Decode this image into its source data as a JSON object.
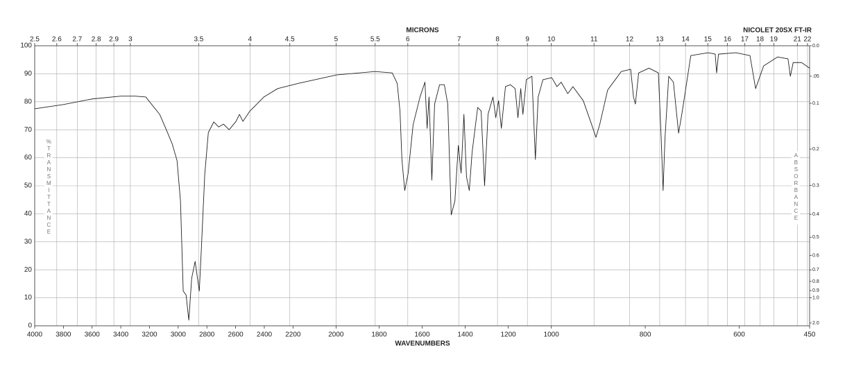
{
  "chart_data": {
    "type": "line",
    "title": "NICOLET 20SX FT-IR",
    "x_label": "WAVENUMBERS",
    "x2_label": "MICRONS",
    "y_label": "%TRANSMITTANCE",
    "y2_label": "ABSORBANCE",
    "color": "#222222",
    "grid": true,
    "xlim": [
      4000,
      450
    ],
    "xticks": [
      4000,
      3800,
      3600,
      3400,
      3200,
      3000,
      2800,
      2600,
      2400,
      2200,
      2000,
      1800,
      1600,
      1400,
      1200,
      1000,
      800,
      600,
      450
    ],
    "x2ticks": [
      2.5,
      2.6,
      2.7,
      2.8,
      2.9,
      3,
      3.5,
      4,
      4.5,
      5,
      5.5,
      6,
      7,
      8,
      9,
      10,
      11,
      12,
      13,
      14,
      15,
      16,
      17,
      18,
      19,
      21,
      22
    ],
    "ylim": [
      0,
      100
    ],
    "yticks": [
      0,
      10,
      20,
      30,
      40,
      50,
      60,
      70,
      80,
      90,
      100
    ],
    "y2ticks": [
      {
        "value": 0,
        "label": "0.0"
      },
      {
        "value": 0.05,
        "label": ".05"
      },
      0.1,
      0.2,
      0.3,
      0.4,
      0.5,
      0.6,
      0.7,
      0.8,
      0.9,
      {
        "value": 1,
        "label": "1.0"
      },
      {
        "value": 2,
        "label": "2.0"
      }
    ],
    "x": [
      4000,
      3800,
      3600,
      3400,
      3300,
      3226,
      3129,
      3081,
      3042,
      3008,
      2984,
      2965,
      2945,
      2926,
      2906,
      2882,
      2853,
      2839,
      2815,
      2790,
      2752,
      2718,
      2684,
      2645,
      2597,
      2573,
      2549,
      2500,
      2403,
      2307,
      2174,
      1997,
      1819,
      1739,
      1716,
      1703,
      1694,
      1681,
      1665,
      1642,
      1610,
      1587,
      1577,
      1568,
      1555,
      1542,
      1519,
      1497,
      1481,
      1465,
      1448,
      1432,
      1419,
      1406,
      1394,
      1381,
      1368,
      1342,
      1326,
      1310,
      1294,
      1271,
      1258,
      1245,
      1232,
      1213,
      1190,
      1168,
      1155,
      1142,
      1132,
      1116,
      1090,
      1074,
      1061,
      1039,
      999,
      988,
      979,
      965,
      954,
      932,
      914,
      905,
      897,
      880,
      851,
      831,
      825,
      821,
      814,
      792,
      772,
      766,
      762,
      758,
      750,
      740,
      729,
      721,
      703,
      666,
      651,
      648,
      644,
      607,
      577,
      565,
      548,
      518,
      496,
      491,
      485,
      467,
      450
    ],
    "values": [
      77.5,
      79,
      81,
      82,
      82,
      81.7,
      75.5,
      69.8,
      65,
      59,
      44.5,
      12.4,
      11,
      2,
      17,
      23,
      12.4,
      27,
      54,
      69,
      72.8,
      71,
      72,
      70,
      73,
      75.5,
      73,
      76.7,
      81.7,
      84.7,
      86.6,
      89.6,
      90.8,
      90.3,
      86.6,
      76.7,
      59.4,
      48.3,
      54.5,
      71.8,
      81.7,
      87,
      70.5,
      81.7,
      52,
      79.2,
      86.1,
      86.1,
      79.2,
      39.6,
      44.5,
      64.4,
      54.5,
      75.5,
      53.2,
      48.3,
      61.9,
      78,
      76.7,
      50,
      75.5,
      81.7,
      74.3,
      80.4,
      70.5,
      85.4,
      86.1,
      84.7,
      74.3,
      84.7,
      75.5,
      87.9,
      89.1,
      59.4,
      81.7,
      87.9,
      88.6,
      85.4,
      87,
      82.9,
      85.4,
      80.4,
      71.8,
      67.3,
      71.8,
      84.2,
      90.8,
      91.6,
      81.7,
      79.2,
      90.3,
      92,
      90.3,
      66.8,
      48.3,
      66.8,
      89.1,
      87,
      68.8,
      76.7,
      96.5,
      97.5,
      97,
      90.3,
      97,
      97.5,
      96.5,
      84.7,
      92.8,
      96,
      95.3,
      89.1,
      94,
      94,
      92
    ]
  }
}
